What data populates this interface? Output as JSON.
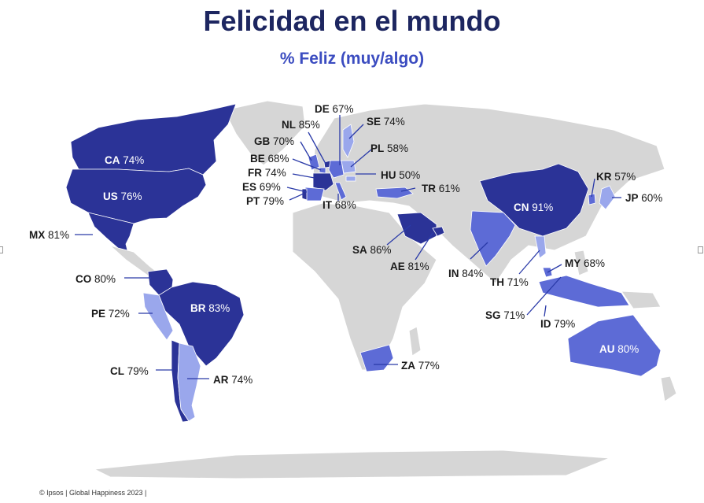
{
  "header": {
    "title": "Felicidad en el mundo",
    "subtitle": "% Feliz (muy/algo)"
  },
  "footer": {
    "text": "© Ipsos | Global Happiness 2023 |"
  },
  "colors": {
    "land": "#d6d6d6",
    "tier_high": "#2b3397",
    "tier_mid": "#5d6bd6",
    "tier_low": "#9aa7ec",
    "label_dark": "#1a1a1a",
    "label_light": "#ffffff",
    "leader": "#2a3aa8"
  },
  "countries": [
    {
      "code": "CA",
      "value": "74%"
    },
    {
      "code": "US",
      "value": "76%"
    },
    {
      "code": "MX",
      "value": "81%"
    },
    {
      "code": "CO",
      "value": "80%"
    },
    {
      "code": "BR",
      "value": "83%"
    },
    {
      "code": "PE",
      "value": "72%"
    },
    {
      "code": "CL",
      "value": "79%"
    },
    {
      "code": "AR",
      "value": "74%"
    },
    {
      "code": "DE",
      "value": "67%"
    },
    {
      "code": "NL",
      "value": "85%"
    },
    {
      "code": "SE",
      "value": "74%"
    },
    {
      "code": "GB",
      "value": "70%"
    },
    {
      "code": "PL",
      "value": "58%"
    },
    {
      "code": "BE",
      "value": "68%"
    },
    {
      "code": "FR",
      "value": "74%"
    },
    {
      "code": "HU",
      "value": "50%"
    },
    {
      "code": "ES",
      "value": "69%"
    },
    {
      "code": "TR",
      "value": "61%"
    },
    {
      "code": "PT",
      "value": "79%"
    },
    {
      "code": "IT",
      "value": "68%"
    },
    {
      "code": "SA",
      "value": "86%"
    },
    {
      "code": "AE",
      "value": "81%"
    },
    {
      "code": "ZA",
      "value": "77%"
    },
    {
      "code": "KR",
      "value": "57%"
    },
    {
      "code": "JP",
      "value": "60%"
    },
    {
      "code": "CN",
      "value": "91%"
    },
    {
      "code": "IN",
      "value": "84%"
    },
    {
      "code": "MY",
      "value": "68%"
    },
    {
      "code": "TH",
      "value": "71%"
    },
    {
      "code": "SG",
      "value": "71%"
    },
    {
      "code": "ID",
      "value": "79%"
    },
    {
      "code": "AU",
      "value": "80%"
    }
  ]
}
